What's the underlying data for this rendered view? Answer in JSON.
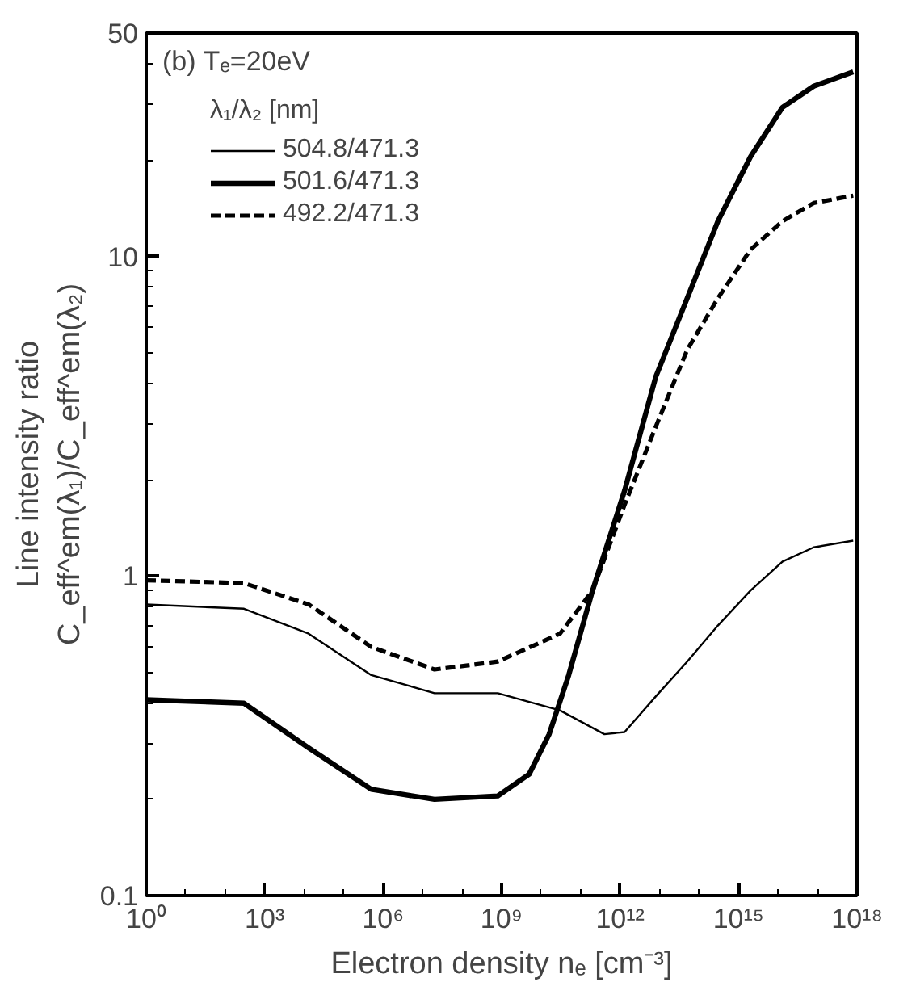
{
  "chart_data": {
    "type": "line",
    "title": "(b) Tₑ=20eV",
    "xlabel": "Electron density nₑ [cm⁻³]",
    "ylabel": "Line intensity ratio\nC_eff^em(λ₁)/C_eff^em(λ₂)",
    "legend_title": "λ₁/λ₂ [nm]",
    "log": "xy",
    "xlim": [
      1,
      1e+18
    ],
    "xticks": [
      {
        "value": 1,
        "label": "10⁰"
      },
      {
        "value": 1000.0,
        "label": "10³"
      },
      {
        "value": 1000000.0,
        "label": "10⁶"
      },
      {
        "value": 1000000000.0,
        "label": "10⁹"
      },
      {
        "value": 1000000000000.0,
        "label": "10¹²"
      },
      {
        "value": 1000000000000000.0,
        "label": "10¹⁵"
      },
      {
        "value": 1e+18,
        "label": "10¹⁸"
      }
    ],
    "ylim": [
      0.1,
      50
    ],
    "yticks": [
      0.1,
      1,
      10,
      50
    ],
    "grid": false,
    "legend": "top left",
    "series": [
      {
        "name": "504.8/471.3",
        "color": "#000000",
        "line_style": "solid",
        "x": [
          1,
          300.0,
          13000.0,
          500000.0,
          20000000.0,
          800000000.0,
          30000000000.0,
          400000000000.0,
          1300000000000.0,
          8000000000000.0,
          50000000000000.0,
          300000000000000.0,
          2000000000000000.0,
          1.3e+16,
          8e+16,
          8e+17
        ],
        "values": [
          0.815,
          0.79,
          0.66,
          0.49,
          0.43,
          0.43,
          0.38,
          0.32,
          0.325,
          0.42,
          0.54,
          0.7,
          0.9,
          1.11,
          1.23,
          1.29
        ]
      },
      {
        "name": "501.6/471.3",
        "color": "#000000",
        "line_style": "solid",
        "x": [
          1,
          300.0,
          13000.0,
          500000.0,
          20000000.0,
          800000000.0,
          5000000000.0,
          16000000000.0,
          50000000000.0,
          200000000000.0,
          1300000000000.0,
          8000000000000.0,
          50000000000000.0,
          300000000000000.0,
          2000000000000000.0,
          1.3e+16,
          8e+16,
          8e+17
        ],
        "values": [
          0.41,
          0.4,
          0.29,
          0.215,
          0.2,
          0.205,
          0.24,
          0.32,
          0.49,
          0.9,
          1.85,
          4.2,
          7.4,
          12.9,
          20.5,
          29.3,
          34.1,
          37.8
        ]
      },
      {
        "name": "492.2/471.3",
        "color": "#000000",
        "line_style": "dashed",
        "x": [
          1,
          300.0,
          13000.0,
          500000.0,
          20000000.0,
          800000000.0,
          30000000000.0,
          200000000000.0,
          1300000000000.0,
          8000000000000.0,
          50000000000000.0,
          300000000000000.0,
          2000000000000000.0,
          1.3e+16,
          8e+16,
          8e+17
        ],
        "values": [
          0.97,
          0.95,
          0.815,
          0.6,
          0.51,
          0.54,
          0.66,
          0.9,
          1.67,
          2.93,
          5.1,
          7.4,
          10.5,
          12.9,
          14.7,
          15.5
        ]
      }
    ]
  }
}
